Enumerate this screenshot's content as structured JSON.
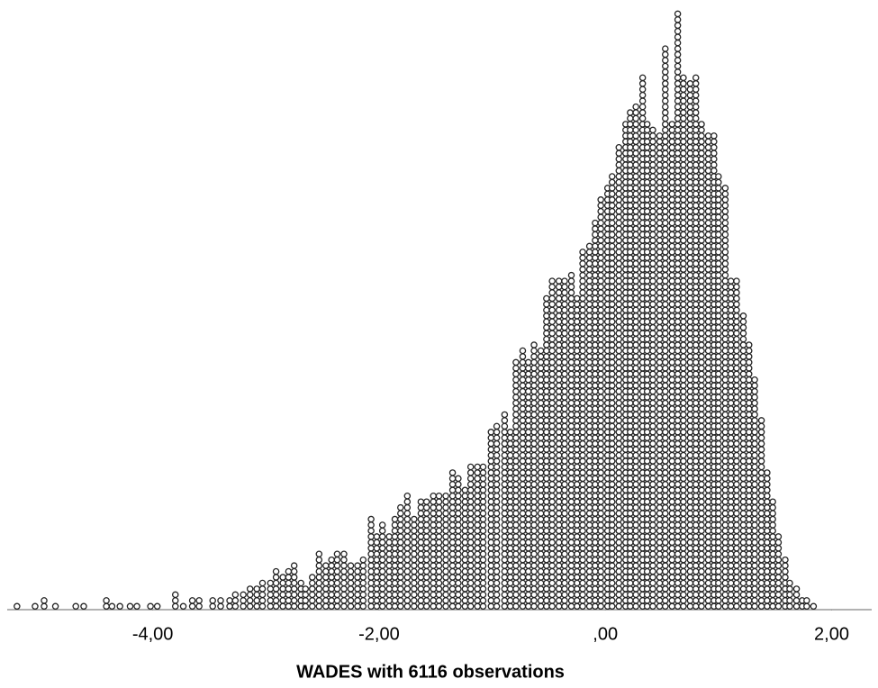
{
  "chart_data": {
    "type": "dotplot",
    "xlabel": "WADES with 6116 observations",
    "x": [
      -5.2,
      -5.04,
      -4.96,
      -4.86,
      -4.68,
      -4.61,
      -4.41,
      -4.36,
      -4.29,
      -4.2,
      -4.14,
      -4.02,
      -3.96,
      -3.8,
      -3.73,
      -3.65,
      -3.59,
      -3.47,
      -3.4,
      -3.32,
      -3.27,
      -3.2,
      -3.14,
      -3.08,
      -3.03,
      -2.96,
      -2.91,
      -2.85,
      -2.8,
      -2.75,
      -2.69,
      -2.65,
      -2.59,
      -2.53,
      -2.47,
      -2.42,
      -2.37,
      -2.31,
      -2.25,
      -2.19,
      -2.14,
      -2.07,
      -2.02,
      -1.97,
      -1.91,
      -1.86,
      -1.81,
      -1.75,
      -1.69,
      -1.63,
      -1.58,
      -1.52,
      -1.47,
      -1.41,
      -1.35,
      -1.3,
      -1.24,
      -1.19,
      -1.13,
      -1.08,
      -1.01,
      -0.96,
      -0.89,
      -0.84,
      -0.79,
      -0.73,
      -0.68,
      -0.63,
      -0.57,
      -0.52,
      -0.47,
      -0.41,
      -0.36,
      -0.3,
      -0.25,
      -0.2,
      -0.14,
      -0.09,
      -0.04,
      0.02,
      0.06,
      0.12,
      0.18,
      0.22,
      0.27,
      0.33,
      0.37,
      0.42,
      0.48,
      0.53,
      0.59,
      0.64,
      0.69,
      0.75,
      0.8,
      0.85,
      0.91,
      0.96,
      1.0,
      1.06,
      1.11,
      1.16,
      1.22,
      1.27,
      1.32,
      1.38,
      1.43,
      1.48,
      1.53,
      1.59,
      1.63,
      1.69,
      1.74,
      1.78,
      1.84
    ],
    "values": [
      1,
      1,
      2,
      1,
      1,
      1,
      2,
      1,
      1,
      1,
      1,
      1,
      1,
      3,
      1,
      2,
      2,
      2,
      2,
      2,
      3,
      3,
      4,
      4,
      5,
      5,
      7,
      6,
      7,
      8,
      5,
      4,
      6,
      10,
      8,
      9,
      10,
      10,
      8,
      8,
      9,
      16,
      13,
      15,
      13,
      16,
      18,
      20,
      16,
      19,
      19,
      20,
      20,
      20,
      24,
      23,
      21,
      25,
      25,
      25,
      31,
      32,
      34,
      31,
      43,
      45,
      43,
      46,
      45,
      54,
      57,
      57,
      57,
      58,
      54,
      62,
      63,
      67,
      71,
      73,
      75,
      80,
      84,
      86,
      87,
      92,
      84,
      83,
      82,
      97,
      84,
      103,
      92,
      91,
      92,
      84,
      82,
      82,
      75,
      73,
      57,
      57,
      51,
      46,
      40,
      33,
      24,
      19,
      13,
      9,
      5,
      4,
      2,
      2,
      1
    ],
    "xlim": [
      -5.35,
      2.41
    ],
    "xticks": [
      {
        "value": -4,
        "label": "-4,00"
      },
      {
        "value": -2,
        "label": "-2,00"
      },
      {
        "value": 0,
        "label": ",00"
      },
      {
        "value": 2,
        "label": "2,00"
      }
    ]
  }
}
